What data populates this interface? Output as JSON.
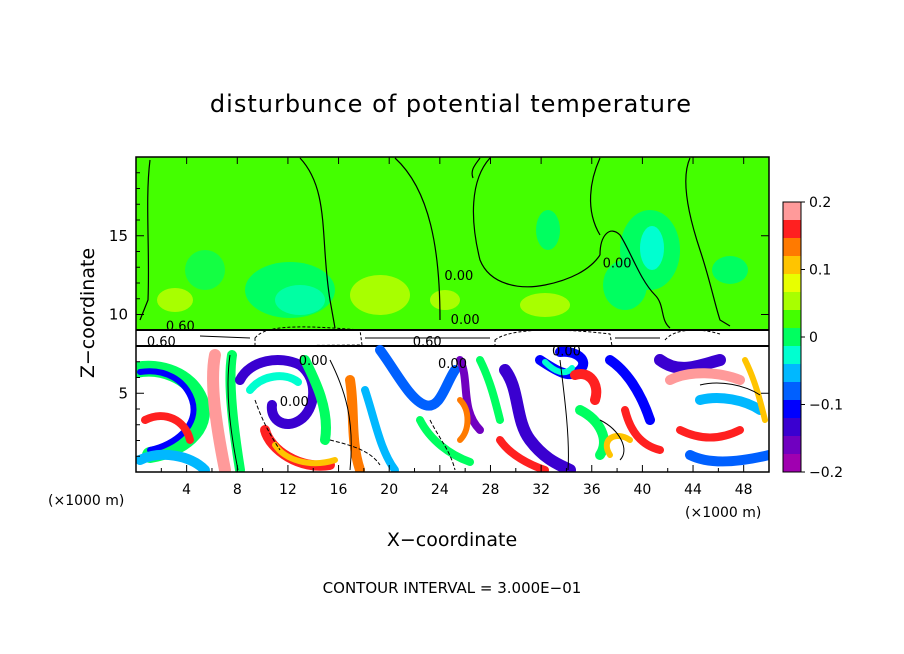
{
  "chart_data": {
    "type": "heatmap",
    "title": "disturbunce of potential temperature",
    "xlabel": "X−coordinate",
    "ylabel": "Z−coordinate",
    "x_unit_left": "(×1000 m)",
    "x_unit_right": "(×1000 m)",
    "xlim": [
      0,
      50
    ],
    "ylim": [
      0,
      20
    ],
    "x_ticks": [
      4,
      8,
      12,
      16,
      20,
      24,
      28,
      32,
      36,
      40,
      44,
      48
    ],
    "y_ticks": [
      5,
      10,
      15
    ],
    "footer": "CONTOUR INTERVAL = 3.000E−01",
    "colorbar": {
      "ticks": [
        0.2,
        0.1,
        0,
        -0.1,
        -0.2
      ],
      "tick_labels": [
        "0.2",
        "0.1",
        "0",
        "−0.1",
        "−0.2"
      ],
      "colors": [
        "#ff9a9a",
        "#ff2020",
        "#ff7a00",
        "#ffc400",
        "#e8ff00",
        "#a8ff00",
        "#44ff00",
        "#00ff60",
        "#00ffd0",
        "#00b8ff",
        "#0060ff",
        "#0000ff",
        "#3a00d0",
        "#7000c0",
        "#a000b0"
      ]
    },
    "contour_labels": [
      {
        "text": "0.00",
        "x": 25.5,
        "z": 12.2
      },
      {
        "text": "0.00",
        "x": 38.0,
        "z": 13.0
      },
      {
        "text": "0.00",
        "x": 26.0,
        "z": 9.4
      },
      {
        "text": "0.60",
        "x": 3.5,
        "z": 9.0
      },
      {
        "text": "0.60",
        "x": 2.0,
        "z": 8.0
      },
      {
        "text": "0.60",
        "x": 23.0,
        "z": 8.0
      },
      {
        "text": "0.00",
        "x": 34.0,
        "z": 7.4
      },
      {
        "text": "0.00",
        "x": 14.0,
        "z": 6.8
      },
      {
        "text": "0.00",
        "x": 25.0,
        "z": 6.6
      },
      {
        "text": "0.00",
        "x": 12.5,
        "z": 4.2
      }
    ]
  }
}
